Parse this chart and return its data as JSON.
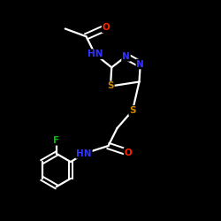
{
  "background_color": "#000000",
  "bond_color": "#ffffff",
  "atom_colors": {
    "N": "#3333ff",
    "O": "#ff2200",
    "S": "#cc8800",
    "F": "#00bb00",
    "H": "#ffffff",
    "C": "#ffffff"
  }
}
